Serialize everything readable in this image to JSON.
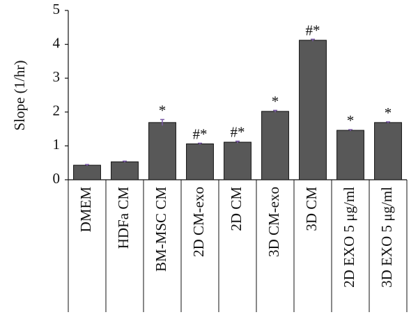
{
  "chart_data": {
    "type": "bar",
    "y_label": "Slope (1/hr)",
    "categories": [
      "DMEM",
      "HDFa CM",
      "BM-MSC CM",
      "2D CM-exo",
      "2D CM",
      "3D CM-exo",
      "3D CM",
      "2D EXO 5 μg/ml",
      "3D EXO 5 μg/ml"
    ],
    "values": [
      0.43,
      0.53,
      1.69,
      1.06,
      1.11,
      2.02,
      4.12,
      1.46,
      1.69
    ],
    "errors": [
      0.02,
      0.02,
      0.09,
      0.02,
      0.03,
      0.03,
      0.03,
      0.02,
      0.02
    ],
    "annotations": [
      null,
      null,
      "*",
      "#*",
      "#*",
      "*",
      "#*",
      "*",
      "*"
    ],
    "color": "#585858",
    "error_color": "#7b5aa6",
    "ylim": [
      0,
      5
    ],
    "yticks": [
      0,
      1,
      2,
      3,
      4,
      5
    ]
  }
}
